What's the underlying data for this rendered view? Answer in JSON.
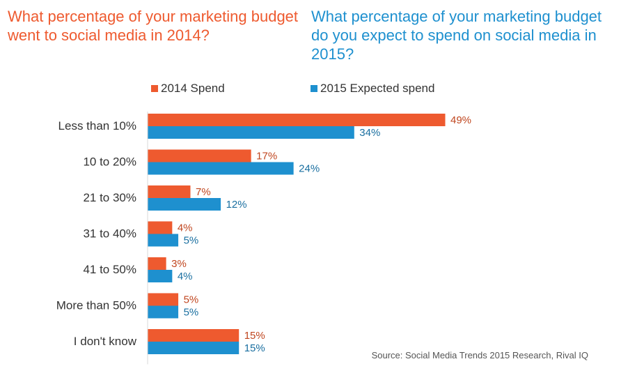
{
  "titles": {
    "left": "What percentage of your marketing budget went to social media in 2014?",
    "right": "What percentage of your marketing budget do you expect to spend on social media in 2015?"
  },
  "colors": {
    "spend_2014": "#EE5A2F",
    "spend_2015": "#1E90CF",
    "value_2014_text": "#C0461F",
    "value_2015_text": "#1A6FA0",
    "axis": "#D9D9D9"
  },
  "source": "Source: Social Media Trends 2015 Research, Rival IQ",
  "chart_data": {
    "type": "bar",
    "orientation": "horizontal",
    "categories": [
      "Less than 10%",
      "10 to 20%",
      "21 to 30%",
      "31 to 40%",
      "41 to 50%",
      "More than 50%",
      "I don't know"
    ],
    "series": [
      {
        "name": "2014 Spend",
        "values": [
          49,
          17,
          7,
          4,
          3,
          5,
          15
        ],
        "labels": [
          "49%",
          "17%",
          "7%",
          "4%",
          "3%",
          "5%",
          "15%"
        ]
      },
      {
        "name": "2015 Expected spend",
        "values": [
          34,
          24,
          12,
          5,
          4,
          5,
          15
        ],
        "labels": [
          "34%",
          "24%",
          "12%",
          "5%",
          "4%",
          "5%",
          "15%"
        ]
      }
    ],
    "xlim": [
      0,
      50
    ],
    "grid": false,
    "legend_position": "top"
  }
}
